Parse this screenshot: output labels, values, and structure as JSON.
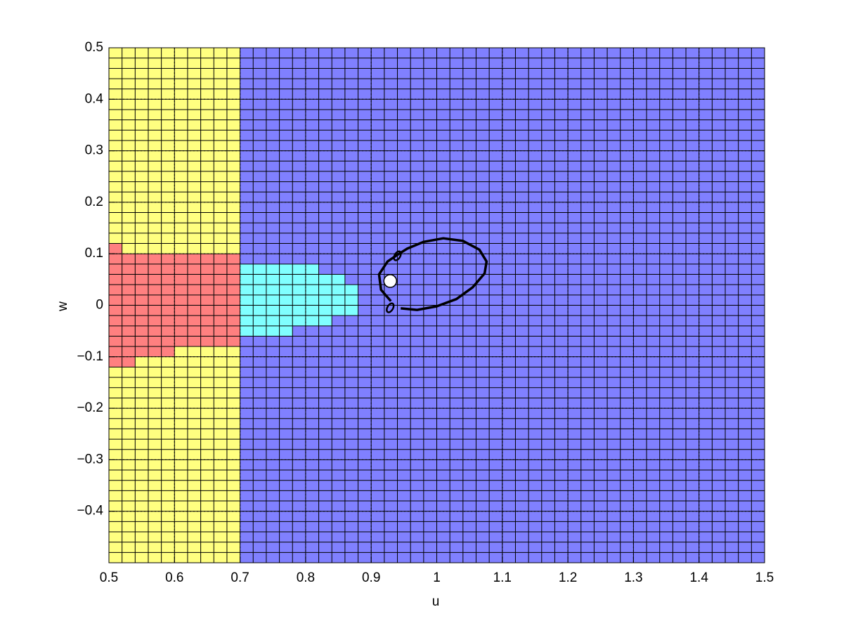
{
  "chart_data": {
    "type": "cellmap",
    "x_label": "u",
    "y_label": "w",
    "xlim": [
      0.5,
      1.5
    ],
    "ylim": [
      -0.5,
      0.5
    ],
    "xticks": [
      0.5,
      0.6,
      0.7,
      0.8,
      0.9,
      1,
      1.1,
      1.2,
      1.3,
      1.4,
      1.5
    ],
    "yticks": [
      -0.4,
      -0.3,
      -0.2,
      -0.1,
      0,
      0.1,
      0.2,
      0.3,
      0.4,
      0.5
    ],
    "grid": true,
    "cell_size": 0.02,
    "cells": [
      {
        "color": "#ffff80",
        "u": [
          0.5,
          0.7
        ],
        "w": [
          -0.5,
          0.5
        ]
      },
      {
        "color": "#8080ff",
        "u": [
          0.7,
          1.5
        ],
        "w": [
          -0.5,
          0.5
        ]
      },
      {
        "color": "#ff8080",
        "u": [
          0.5,
          0.52
        ],
        "w": [
          -0.12,
          0.12
        ]
      },
      {
        "color": "#ff8080",
        "u": [
          0.52,
          0.54
        ],
        "w": [
          -0.12,
          0.1
        ]
      },
      {
        "color": "#ff8080",
        "u": [
          0.54,
          0.6
        ],
        "w": [
          -0.1,
          0.1
        ]
      },
      {
        "color": "#ff8080",
        "u": [
          0.6,
          0.7
        ],
        "w": [
          -0.08,
          0.1
        ]
      },
      {
        "color": "#80ffff",
        "u": [
          0.7,
          0.78
        ],
        "w": [
          -0.06,
          0.08
        ]
      },
      {
        "color": "#80ffff",
        "u": [
          0.78,
          0.82
        ],
        "w": [
          -0.04,
          0.08
        ]
      },
      {
        "color": "#80ffff",
        "u": [
          0.82,
          0.84
        ],
        "w": [
          -0.04,
          0.06
        ]
      },
      {
        "color": "#80ffff",
        "u": [
          0.84,
          0.86
        ],
        "w": [
          -0.02,
          0.06
        ]
      },
      {
        "color": "#80ffff",
        "u": [
          0.86,
          0.88
        ],
        "w": [
          -0.02,
          0.04
        ]
      }
    ],
    "curve": {
      "color": "#000000",
      "u": [
        0.945,
        0.97,
        1.0,
        1.03,
        1.055,
        1.073,
        1.076,
        1.065,
        1.04,
        1.01,
        0.98,
        0.955,
        0.94,
        0.925,
        0.912,
        0.915,
        0.93
      ],
      "w": [
        -0.006,
        -0.009,
        -0.002,
        0.012,
        0.035,
        0.062,
        0.085,
        0.108,
        0.125,
        0.13,
        0.123,
        0.11,
        0.098,
        0.085,
        0.06,
        0.03,
        0.008
      ]
    },
    "loops": [
      {
        "u": 0.94,
        "w": 0.096
      },
      {
        "u": 0.929,
        "w": -0.005
      }
    ],
    "point": {
      "u": 0.929,
      "w": 0.047,
      "color": "#ffffff"
    }
  }
}
